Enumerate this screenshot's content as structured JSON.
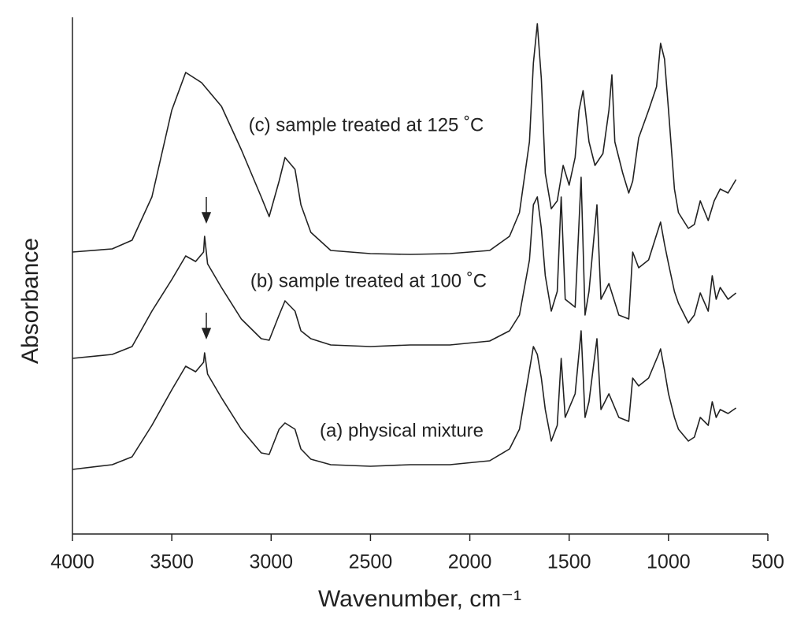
{
  "chart_data": {
    "type": "line",
    "xlabel": "Wavenumber, cm⁻¹",
    "ylabel": "Absorbance",
    "xlim": [
      4000,
      500
    ],
    "xticks": [
      4000,
      3500,
      3000,
      2500,
      2000,
      1500,
      1000,
      500
    ],
    "ylim": [
      0,
      656
    ],
    "color": "#222222",
    "series": [
      {
        "name": "(c) sample treated at 125 ˚C",
        "x": [
          4000,
          3800,
          3700,
          3600,
          3500,
          3430,
          3350,
          3250,
          3150,
          3050,
          3010,
          2960,
          2930,
          2880,
          2850,
          2800,
          2700,
          2500,
          2300,
          2100,
          1900,
          1800,
          1750,
          1700,
          1680,
          1660,
          1640,
          1620,
          1590,
          1560,
          1530,
          1500,
          1470,
          1450,
          1430,
          1400,
          1370,
          1330,
          1300,
          1285,
          1270,
          1230,
          1200,
          1180,
          1150,
          1100,
          1060,
          1040,
          1020,
          1000,
          970,
          950,
          900,
          870,
          840,
          800,
          770,
          740,
          700,
          660
        ],
        "values": [
          358,
          362,
          373,
          428,
          538,
          586,
          573,
          543,
          488,
          428,
          403,
          448,
          478,
          463,
          418,
          383,
          360,
          356,
          355,
          356,
          360,
          378,
          408,
          498,
          598,
          648,
          578,
          458,
          413,
          423,
          468,
          443,
          478,
          538,
          563,
          498,
          468,
          483,
          538,
          583,
          498,
          458,
          433,
          448,
          503,
          538,
          568,
          623,
          603,
          538,
          438,
          408,
          388,
          393,
          423,
          398,
          423,
          438,
          433,
          450
        ]
      },
      {
        "name": "(b) sample treated at 100 ˚C",
        "x": [
          4000,
          3800,
          3700,
          3600,
          3500,
          3430,
          3380,
          3340,
          3335,
          3320,
          3250,
          3150,
          3050,
          3010,
          2960,
          2930,
          2880,
          2850,
          2800,
          2700,
          2500,
          2300,
          2100,
          1900,
          1800,
          1750,
          1700,
          1680,
          1660,
          1640,
          1620,
          1590,
          1560,
          1540,
          1520,
          1470,
          1440,
          1420,
          1400,
          1360,
          1340,
          1300,
          1250,
          1200,
          1180,
          1150,
          1100,
          1050,
          1040,
          1020,
          1000,
          970,
          950,
          900,
          870,
          840,
          800,
          780,
          760,
          740,
          700,
          660
        ],
        "values": [
          223,
          228,
          238,
          283,
          323,
          353,
          346,
          358,
          378,
          343,
          313,
          273,
          248,
          246,
          278,
          296,
          283,
          258,
          248,
          240,
          238,
          240,
          240,
          245,
          258,
          278,
          348,
          418,
          428,
          388,
          328,
          283,
          308,
          428,
          298,
          288,
          453,
          278,
          308,
          418,
          298,
          318,
          278,
          273,
          358,
          338,
          348,
          388,
          396,
          368,
          343,
          308,
          293,
          268,
          278,
          306,
          283,
          328,
          298,
          313,
          298,
          306
        ]
      },
      {
        "name": "(a) physical mixture",
        "x": [
          4000,
          3800,
          3700,
          3600,
          3500,
          3430,
          3380,
          3340,
          3335,
          3320,
          3250,
          3150,
          3050,
          3010,
          2960,
          2930,
          2880,
          2850,
          2800,
          2700,
          2500,
          2300,
          2100,
          1900,
          1800,
          1750,
          1700,
          1680,
          1660,
          1640,
          1620,
          1590,
          1560,
          1540,
          1520,
          1470,
          1440,
          1420,
          1400,
          1360,
          1340,
          1300,
          1250,
          1200,
          1180,
          1150,
          1100,
          1050,
          1040,
          1020,
          1000,
          970,
          950,
          900,
          870,
          840,
          800,
          780,
          760,
          740,
          700,
          660
        ],
        "values": [
          82,
          88,
          98,
          138,
          183,
          213,
          206,
          218,
          230,
          203,
          173,
          133,
          103,
          101,
          133,
          141,
          133,
          108,
          95,
          88,
          86,
          88,
          88,
          93,
          108,
          133,
          208,
          238,
          228,
          198,
          158,
          118,
          138,
          223,
          148,
          178,
          258,
          148,
          168,
          248,
          158,
          178,
          148,
          143,
          198,
          188,
          198,
          228,
          235,
          208,
          178,
          148,
          133,
          118,
          123,
          148,
          138,
          168,
          148,
          158,
          153,
          160
        ]
      }
    ]
  }
}
